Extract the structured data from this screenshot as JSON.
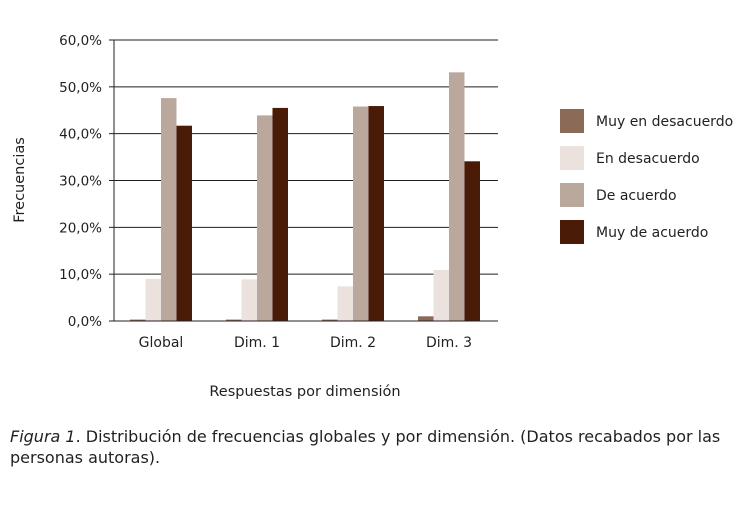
{
  "chart_data": {
    "type": "bar",
    "categories": [
      "Global",
      "Dim. 1",
      "Dim. 2",
      "Dim. 3"
    ],
    "series": [
      {
        "name": "Muy en desacuerdo",
        "color": "#8c6a58",
        "values": [
          0.3,
          0.3,
          0.3,
          1.0
        ]
      },
      {
        "name": "En desacuerdo",
        "color": "#ebe2de",
        "values": [
          9.0,
          8.9,
          7.4,
          10.9
        ]
      },
      {
        "name": "De acuerdo",
        "color": "#bba89c",
        "values": [
          47.6,
          43.9,
          45.8,
          53.1
        ]
      },
      {
        "name": "Muy de acuerdo",
        "color": "#4a1c07",
        "values": [
          41.7,
          45.5,
          45.9,
          34.1
        ]
      }
    ],
    "xlabel": "Respuestas por dimensión",
    "ylabel": "Frecuencias",
    "ylim": [
      0,
      60
    ],
    "yticks": [
      "0,0%",
      "10,0%",
      "20,0%",
      "30,0%",
      "40,0%",
      "50,0%",
      "60,0%"
    ],
    "grid": true,
    "legend_position": "right"
  },
  "caption": {
    "figure_label": "Figura 1",
    "text": ". Distribución de frecuencias globales y por dimensión. (Datos recabados por las personas autoras)."
  }
}
